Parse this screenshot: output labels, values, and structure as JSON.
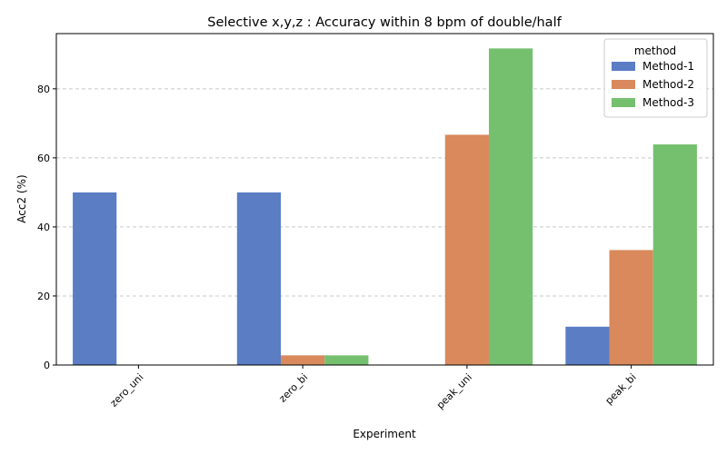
{
  "chart_data": {
    "type": "bar",
    "title": "Selective x,y,z : Accuracy within 8 bpm of double/half",
    "xlabel": "Experiment",
    "ylabel": "Acc2 (%)",
    "categories": [
      "zero_uni",
      "zero_bi",
      "peak_uni",
      "peak_bi"
    ],
    "series": [
      {
        "name": "Method-1",
        "color": "#5a7dc4",
        "values": [
          50.0,
          50.0,
          0.0,
          11.1
        ]
      },
      {
        "name": "Method-2",
        "color": "#d9895c",
        "values": [
          0.0,
          2.8,
          66.7,
          33.3
        ]
      },
      {
        "name": "Method-3",
        "color": "#75c06f",
        "values": [
          0.0,
          2.8,
          91.7,
          63.9
        ]
      }
    ],
    "ylim": [
      0,
      96
    ],
    "yticks": [
      0,
      20,
      40,
      60,
      80
    ],
    "grid": "y-dashed",
    "legend": {
      "title": "method",
      "placement": "top-right"
    },
    "xtick_rotation": 45
  }
}
